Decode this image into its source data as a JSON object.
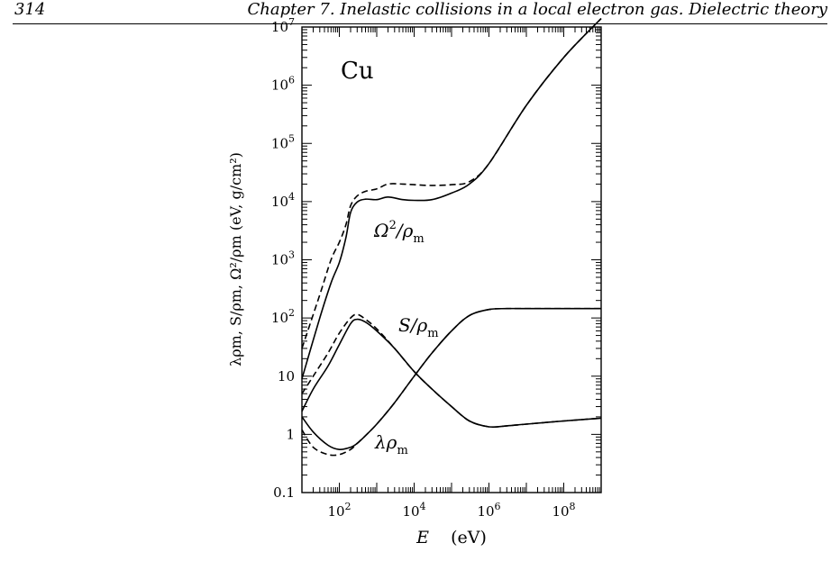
{
  "page": {
    "number": "314",
    "chapter_title": "Chapter 7. Inelastic collisions in a local electron gas. Dielectric theory"
  },
  "chart_data": {
    "type": "line",
    "material_label": "Cu",
    "xlabel": "E    (eV)",
    "ylabel": "λρm, S/ρm, Ω²/ρm   (eV, g/cm²)",
    "xscale": "log",
    "yscale": "log",
    "xlim": [
      10,
      1000000000
    ],
    "ylim": [
      0.1,
      10000000
    ],
    "x_ticks": [
      {
        "value": 100,
        "label": "10^2"
      },
      {
        "value": 10000,
        "label": "10^4"
      },
      {
        "value": 1000000,
        "label": "10^6"
      },
      {
        "value": 100000000,
        "label": "10^8"
      }
    ],
    "y_ticks": [
      {
        "value": 0.1,
        "label": "0.1"
      },
      {
        "value": 1,
        "label": "1"
      },
      {
        "value": 10,
        "label": "10"
      },
      {
        "value": 100,
        "label": "10^2"
      },
      {
        "value": 1000,
        "label": "10^3"
      },
      {
        "value": 10000,
        "label": "10^4"
      },
      {
        "value": 100000,
        "label": "10^5"
      },
      {
        "value": 1000000,
        "label": "10^6"
      },
      {
        "value": 10000000,
        "label": "10^7"
      }
    ],
    "curve_labels": [
      {
        "id": "omega",
        "base": "Ω",
        "sup": "2",
        "mid": "/ρ",
        "sub": "m"
      },
      {
        "id": "S",
        "base": "S",
        "sup": "",
        "mid": "/ρ",
        "sub": "m"
      },
      {
        "id": "lambda",
        "base": "λρ",
        "sup": "",
        "mid": "",
        "sub": "m"
      }
    ],
    "series": [
      {
        "curve": "omega",
        "style": "solid",
        "x": [
          10,
          30,
          60,
          100,
          150,
          200,
          300,
          500,
          1000,
          2000,
          5000,
          10000,
          30000,
          100000,
          300000,
          1000000,
          10000000,
          100000000,
          1000000000
        ],
        "y": [
          9,
          100,
          400,
          900,
          2400,
          6500,
          9800,
          11000,
          10800,
          12000,
          10800,
          10500,
          10800,
          14000,
          20000,
          45000,
          450000,
          3000000,
          14000000
        ]
      },
      {
        "curve": "omega",
        "style": "dashed",
        "x": [
          10,
          30,
          60,
          100,
          150,
          200,
          300,
          500,
          1000,
          2000,
          5000,
          10000,
          30000,
          100000,
          300000,
          1000000,
          10000000,
          100000000,
          1000000000
        ],
        "y": [
          30,
          250,
          1000,
          2000,
          4000,
          8500,
          12500,
          15000,
          16500,
          20000,
          20000,
          19500,
          19000,
          19500,
          22000,
          45000,
          450000,
          3000000,
          14000000
        ]
      },
      {
        "curve": "S",
        "style": "solid",
        "x": [
          10,
          20,
          50,
          100,
          200,
          300,
          500,
          1000,
          3000,
          10000,
          30000,
          100000,
          300000,
          1000000,
          3000000,
          10000000,
          100000000,
          1000000000
        ],
        "y": [
          2.5,
          6,
          15,
          35,
          80,
          95,
          85,
          60,
          30,
          12,
          6,
          3,
          1.7,
          1.35,
          1.4,
          1.5,
          1.7,
          1.9
        ]
      },
      {
        "curve": "S",
        "style": "dashed",
        "x": [
          10,
          20,
          50,
          100,
          200,
          300,
          500,
          1000,
          3000,
          10000,
          30000,
          100000,
          300000,
          1000000,
          3000000,
          10000000,
          100000000,
          1000000000
        ],
        "y": [
          5,
          10,
          25,
          55,
          100,
          115,
          95,
          65,
          30,
          12,
          6,
          3,
          1.7,
          1.35,
          1.4,
          1.5,
          1.7,
          1.9
        ]
      },
      {
        "curve": "lambda",
        "style": "solid",
        "x": [
          10,
          20,
          50,
          100,
          200,
          300,
          500,
          1000,
          3000,
          10000,
          30000,
          100000,
          300000,
          1000000,
          3000000,
          10000000,
          100000000,
          1000000000
        ],
        "y": [
          2,
          1.1,
          0.65,
          0.55,
          0.6,
          0.7,
          0.95,
          1.5,
          3.5,
          10,
          25,
          60,
          110,
          140,
          145,
          145,
          145,
          145
        ]
      },
      {
        "curve": "lambda",
        "style": "dashed",
        "x": [
          10,
          20,
          50,
          100,
          200,
          300,
          500,
          1000,
          3000,
          10000,
          30000,
          100000,
          300000,
          1000000,
          3000000,
          10000000,
          100000000,
          1000000000
        ],
        "y": [
          1.2,
          0.6,
          0.45,
          0.45,
          0.55,
          0.7,
          0.95,
          1.5,
          3.5,
          10,
          25,
          60,
          110,
          140,
          145,
          145,
          145,
          145
        ]
      }
    ]
  }
}
